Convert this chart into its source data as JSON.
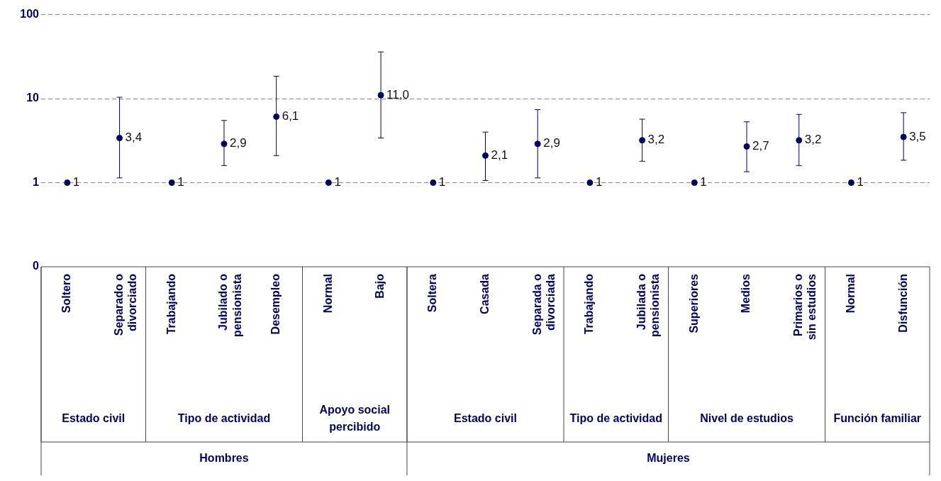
{
  "chart_data": {
    "type": "scatter",
    "categories": [
      "Soltero",
      "Separado o divorciado",
      "Trabajando",
      "Jubilado o pensionista",
      "Desempleo",
      "Normal",
      "Bajo",
      "Soltera",
      "Casada",
      "Separada o divorciada",
      "Trabajando",
      "Jubilada o pensionista",
      "Superiores",
      "Medios",
      "Primarios o sin estudios",
      "Normal",
      "Disfunción"
    ],
    "values": [
      1,
      3.4,
      1,
      2.9,
      6.1,
      1,
      11.0,
      1,
      2.1,
      2.9,
      1,
      3.2,
      1,
      2.7,
      3.2,
      1,
      3.5
    ],
    "errors": [
      null,
      [
        1.14,
        10.4
      ],
      null,
      [
        1.6,
        5.5
      ],
      [
        2.1,
        18.5
      ],
      null,
      [
        3.4,
        36
      ],
      null,
      [
        1.06,
        4.0
      ],
      [
        1.14,
        7.4
      ],
      null,
      [
        1.8,
        5.7
      ],
      null,
      [
        1.35,
        5.3
      ],
      [
        1.6,
        6.5
      ],
      null,
      [
        1.85,
        6.8
      ]
    ],
    "value_labels": [
      "1",
      "3,4",
      "1",
      "2,9",
      "6,1",
      "1",
      "11,0",
      "1",
      "2,1",
      "2,9",
      "1",
      "3,2",
      "1",
      "2,7",
      "3,2",
      "1",
      "3,5"
    ],
    "color": "#000066",
    "marker": "circle",
    "log": true,
    "ylim": [
      0.1,
      100
    ],
    "yticks": [
      {
        "value": 0.1,
        "label": "0"
      },
      1,
      10,
      100
    ],
    "grid": "y",
    "legend": false,
    "annotations": [
      "Estado civil",
      "Tipo de actividad",
      "Apoyo social percibido",
      "Estado civil",
      "Tipo de actividad",
      "Nivel de estudios",
      "Función familiar",
      "Hombres",
      "Mujeres"
    ]
  }
}
